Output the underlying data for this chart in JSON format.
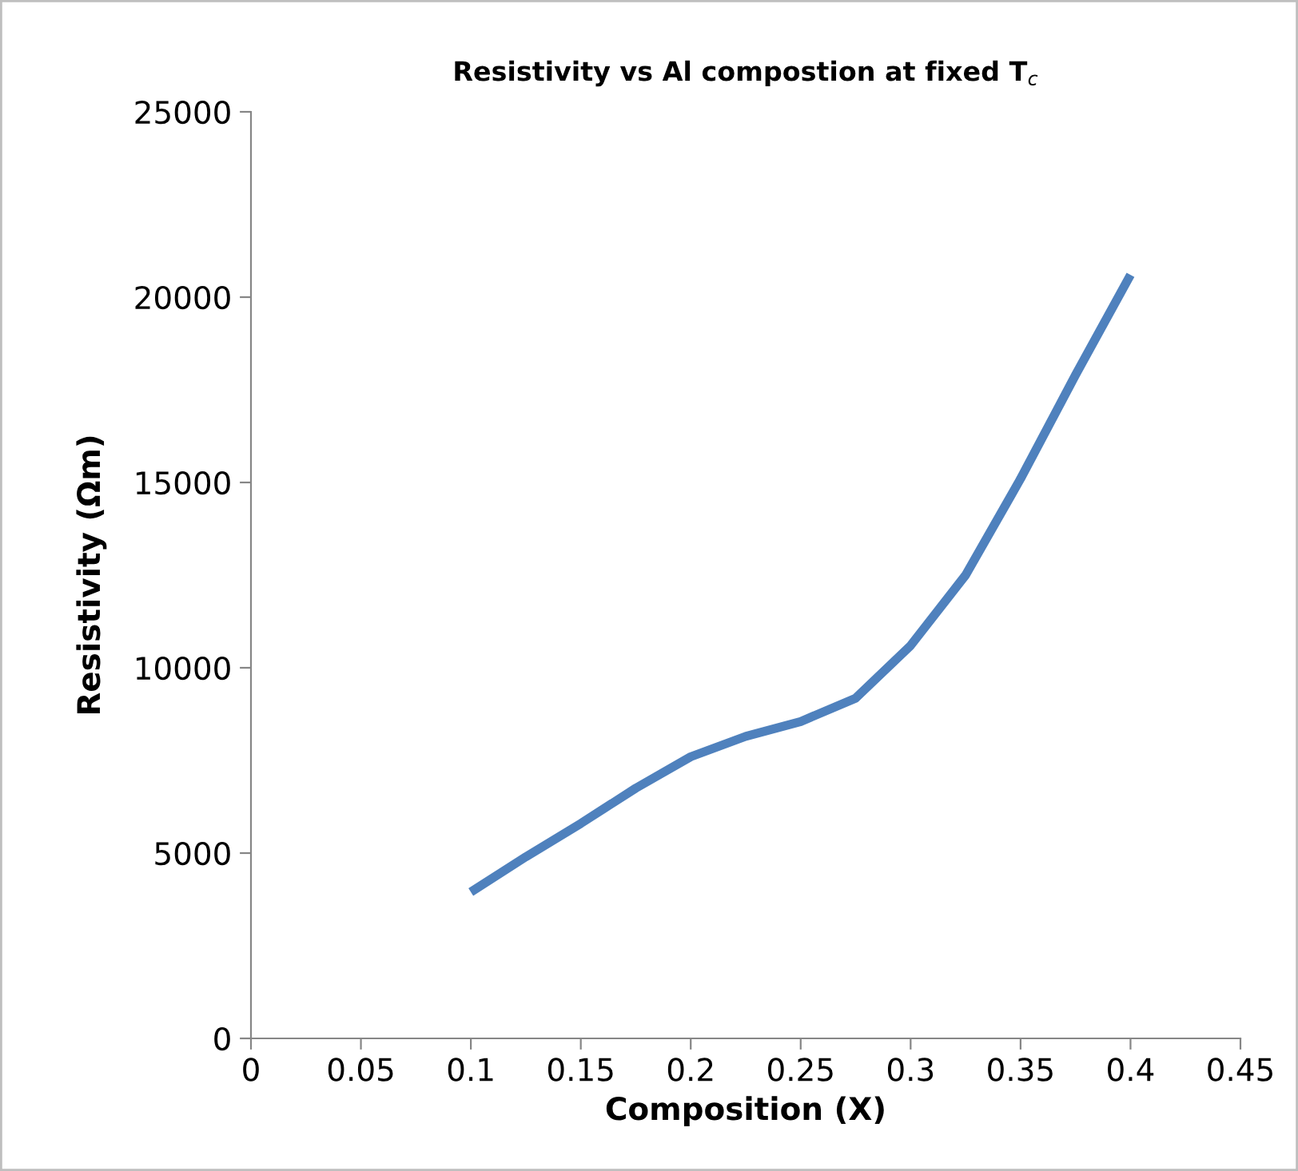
{
  "chart_data": {
    "type": "line",
    "title": "Resistivity vs Al compostion at fixed T$_{c}$",
    "xlabel": "Composition (X)",
    "ylabel": "Resistivity (Ωm)",
    "x": [
      0.1,
      0.125,
      0.15,
      0.175,
      0.2,
      0.225,
      0.25,
      0.275,
      0.3,
      0.325,
      0.35,
      0.375,
      0.4
    ],
    "series": [
      {
        "color": "#4f81bd",
        "values": [
          3950,
          4900,
          5800,
          6750,
          7600,
          8150,
          8550,
          9180,
          10600,
          12500,
          15100,
          17900,
          20600
        ]
      }
    ],
    "xlim": [
      0,
      0.45
    ],
    "xticks": [
      0,
      0.05,
      0.1,
      0.15,
      0.2,
      0.25,
      0.3,
      0.35,
      0.4,
      0.45
    ],
    "ylim": [
      0,
      25000
    ],
    "yticks": [
      0,
      5000,
      10000,
      15000,
      20000,
      25000
    ],
    "grid": false,
    "legend": false,
    "marker": "none",
    "line_style": "solid"
  }
}
